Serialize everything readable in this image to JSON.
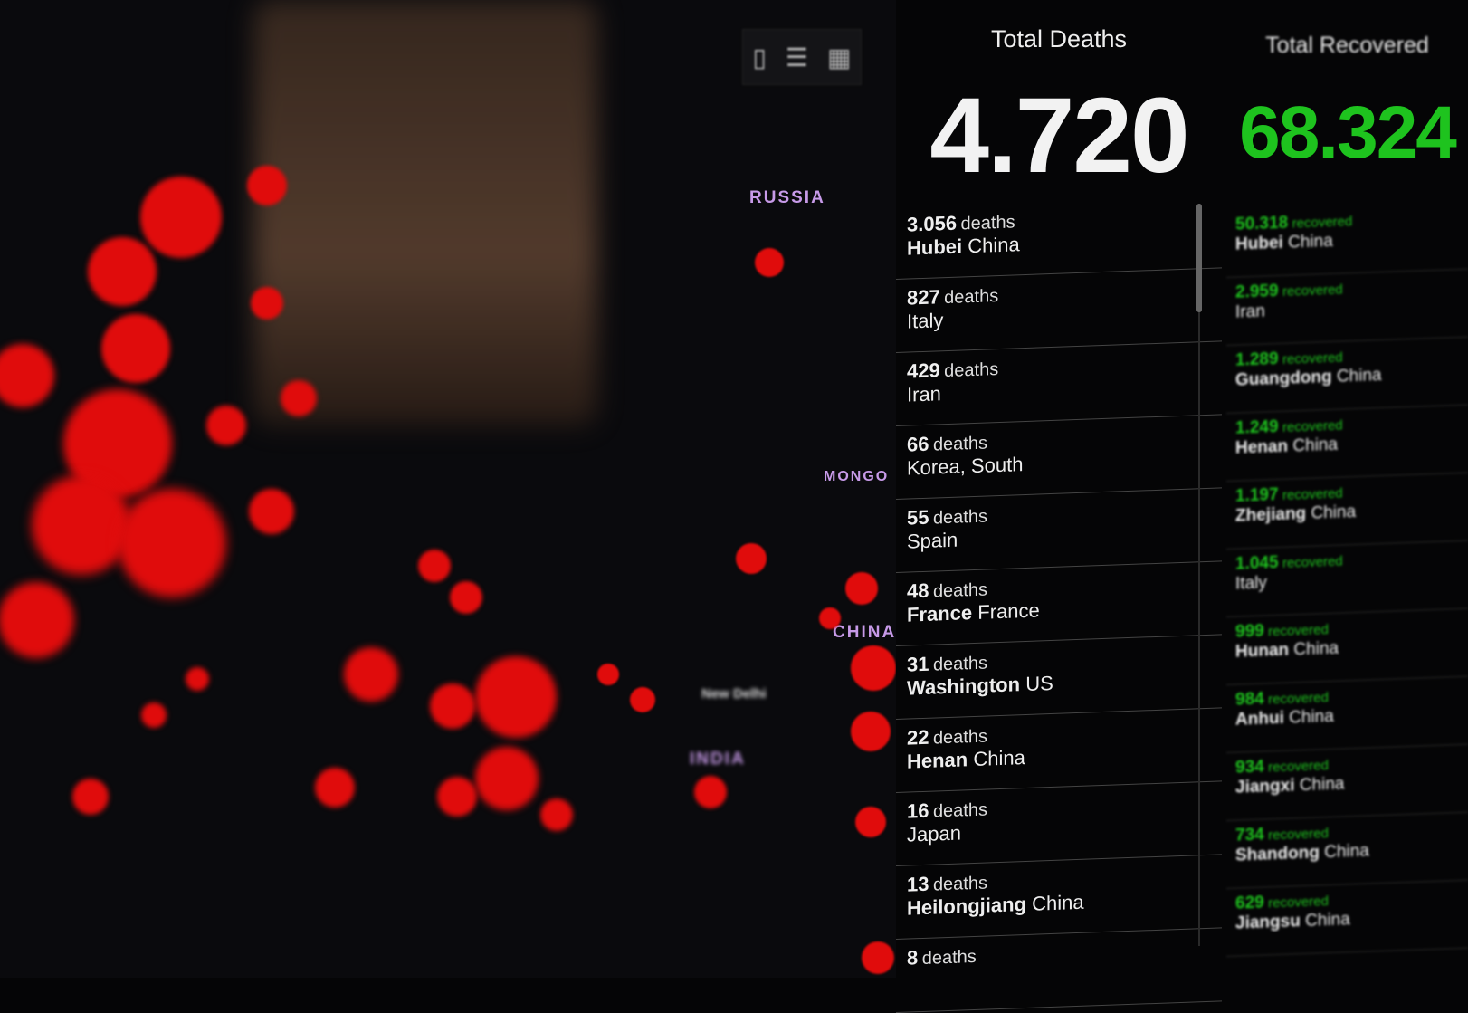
{
  "map": {
    "labels": [
      "RUSSIA",
      "CHINA",
      "INDIA",
      "MONGO",
      "New Delhi"
    ],
    "bubble_color": "#e00c0c"
  },
  "toolbar": {
    "icons": [
      "bookmark-icon",
      "list-icon",
      "grid-icon"
    ]
  },
  "deaths": {
    "title": "Total Deaths",
    "total": "4.720",
    "unit": "deaths",
    "items": [
      {
        "count": "3.056",
        "place": "Hubei",
        "region": "China"
      },
      {
        "count": "827",
        "place": "",
        "region": "Italy"
      },
      {
        "count": "429",
        "place": "",
        "region": "Iran"
      },
      {
        "count": "66",
        "place": "",
        "region": "Korea, South"
      },
      {
        "count": "55",
        "place": "",
        "region": "Spain"
      },
      {
        "count": "48",
        "place": "France",
        "region": "France"
      },
      {
        "count": "31",
        "place": "Washington",
        "region": "US"
      },
      {
        "count": "22",
        "place": "Henan",
        "region": "China"
      },
      {
        "count": "16",
        "place": "",
        "region": "Japan"
      },
      {
        "count": "13",
        "place": "Heilongjiang",
        "region": "China"
      },
      {
        "count": "8",
        "place": "",
        "region": ""
      }
    ]
  },
  "recovered": {
    "title": "Total Recovered",
    "total": "68.324",
    "unit": "recovered",
    "items": [
      {
        "count": "50.318",
        "place": "Hubei",
        "region": "China"
      },
      {
        "count": "2.959",
        "place": "",
        "region": "Iran"
      },
      {
        "count": "1.289",
        "place": "Guangdong",
        "region": "China"
      },
      {
        "count": "1.249",
        "place": "Henan",
        "region": "China"
      },
      {
        "count": "1.197",
        "place": "Zhejiang",
        "region": "China"
      },
      {
        "count": "1.045",
        "place": "",
        "region": "Italy"
      },
      {
        "count": "999",
        "place": "Hunan",
        "region": "China"
      },
      {
        "count": "984",
        "place": "Anhui",
        "region": "China"
      },
      {
        "count": "934",
        "place": "Jiangxi",
        "region": "China"
      },
      {
        "count": "734",
        "place": "Shandong",
        "region": "China"
      },
      {
        "count": "629",
        "place": "Jiangsu",
        "region": "China"
      }
    ]
  },
  "colors": {
    "deaths": "#f2f2f2",
    "recovered": "#1ec31e",
    "background": "#050506"
  }
}
